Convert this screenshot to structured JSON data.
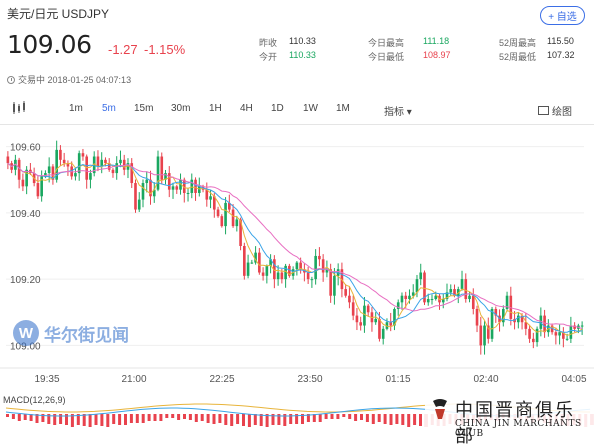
{
  "header": {
    "title": "美元/日元  USDJPY",
    "add_button": "+ 自选",
    "price": "109.06",
    "change": "-1.27",
    "change_pct": "-1.15%",
    "stats": [
      {
        "label": "昨收",
        "value": "110.33",
        "color": "dark"
      },
      {
        "label": "今开",
        "value": "110.33",
        "color": "green"
      },
      {
        "label": "今日最高",
        "value": "111.18",
        "color": "green"
      },
      {
        "label": "今日最低",
        "value": "108.97",
        "color": "red"
      },
      {
        "label": "52周最高",
        "value": "115.50",
        "color": "dark"
      },
      {
        "label": "52周最低",
        "value": "107.32",
        "color": "dark"
      }
    ],
    "status": "交易中 2018-01-25 04:07:13"
  },
  "toolbar": {
    "tabs": [
      "1m",
      "5m",
      "15m",
      "30m",
      "1H",
      "4H",
      "1D",
      "1W",
      "1M"
    ],
    "active": "5m",
    "indicator": "指标 ▾",
    "draw": "绘图"
  },
  "chart_data": {
    "type": "candlestick",
    "y_ticks": [
      "109.60",
      "109.40",
      "109.20",
      "109.00"
    ],
    "x_ticks": [
      "19:35",
      "21:00",
      "22:25",
      "23:50",
      "01:15",
      "02:40",
      "04:05"
    ],
    "ylim": [
      108.95,
      109.65
    ],
    "closes": [
      109.55,
      109.53,
      109.56,
      109.5,
      109.48,
      109.53,
      109.52,
      109.49,
      109.45,
      109.51,
      109.52,
      109.54,
      109.5,
      109.59,
      109.56,
      109.55,
      109.54,
      109.51,
      109.52,
      109.58,
      109.57,
      109.5,
      109.52,
      109.57,
      109.54,
      109.56,
      109.55,
      109.53,
      109.52,
      109.55,
      109.56,
      109.53,
      109.55,
      109.49,
      109.41,
      109.44,
      109.49,
      109.5,
      109.45,
      109.47,
      109.57,
      109.5,
      109.52,
      109.47,
      109.48,
      109.47,
      109.5,
      109.46,
      109.46,
      109.5,
      109.46,
      109.48,
      109.47,
      109.44,
      109.45,
      109.41,
      109.39,
      109.36,
      109.43,
      109.41,
      109.36,
      109.38,
      109.3,
      109.21,
      109.25,
      109.25,
      109.28,
      109.22,
      109.21,
      109.24,
      109.26,
      109.2,
      109.22,
      109.2,
      109.24,
      109.21,
      109.23,
      109.25,
      109.23,
      109.22,
      109.2,
      109.2,
      109.27,
      109.26,
      109.22,
      109.23,
      109.15,
      109.21,
      109.23,
      109.17,
      109.15,
      109.13,
      109.09,
      109.07,
      109.06,
      109.12,
      109.1,
      109.07,
      109.08,
      109.02,
      109.05,
      109.07,
      109.06,
      109.11,
      109.13,
      109.15,
      109.14,
      109.15,
      109.16,
      109.2,
      109.22,
      109.13,
      109.14,
      109.14,
      109.15,
      109.13,
      109.14,
      109.16,
      109.17,
      109.15,
      109.17,
      109.2,
      109.14,
      109.15,
      109.11,
      109.06,
      109.0,
      109.06,
      109.02,
      109.11,
      109.09,
      109.07,
      109.11,
      109.15,
      109.08,
      109.07,
      109.09,
      109.07,
      109.05,
      109.02,
      109.01,
      109.05,
      109.09,
      109.04,
      109.06,
      109.04,
      109.03,
      109.04,
      109.02,
      109.02,
      109.06,
      109.05,
      109.06,
      109.06
    ]
  },
  "macd_label": "MACD(12,26,9)",
  "watermark": {
    "logo": "W",
    "text": "华尔街见闻"
  },
  "club": {
    "cn": "中国晋商俱乐部",
    "en": "CHINA JIN MARCHANTS CLUB"
  },
  "colors": {
    "up": "#1aa760",
    "down": "#e8424d",
    "accent": "#3b6ee6",
    "ma_pink": "#e86fc2",
    "ma_blue": "#3aa4e8",
    "ma_yellow": "#e8b43a"
  }
}
